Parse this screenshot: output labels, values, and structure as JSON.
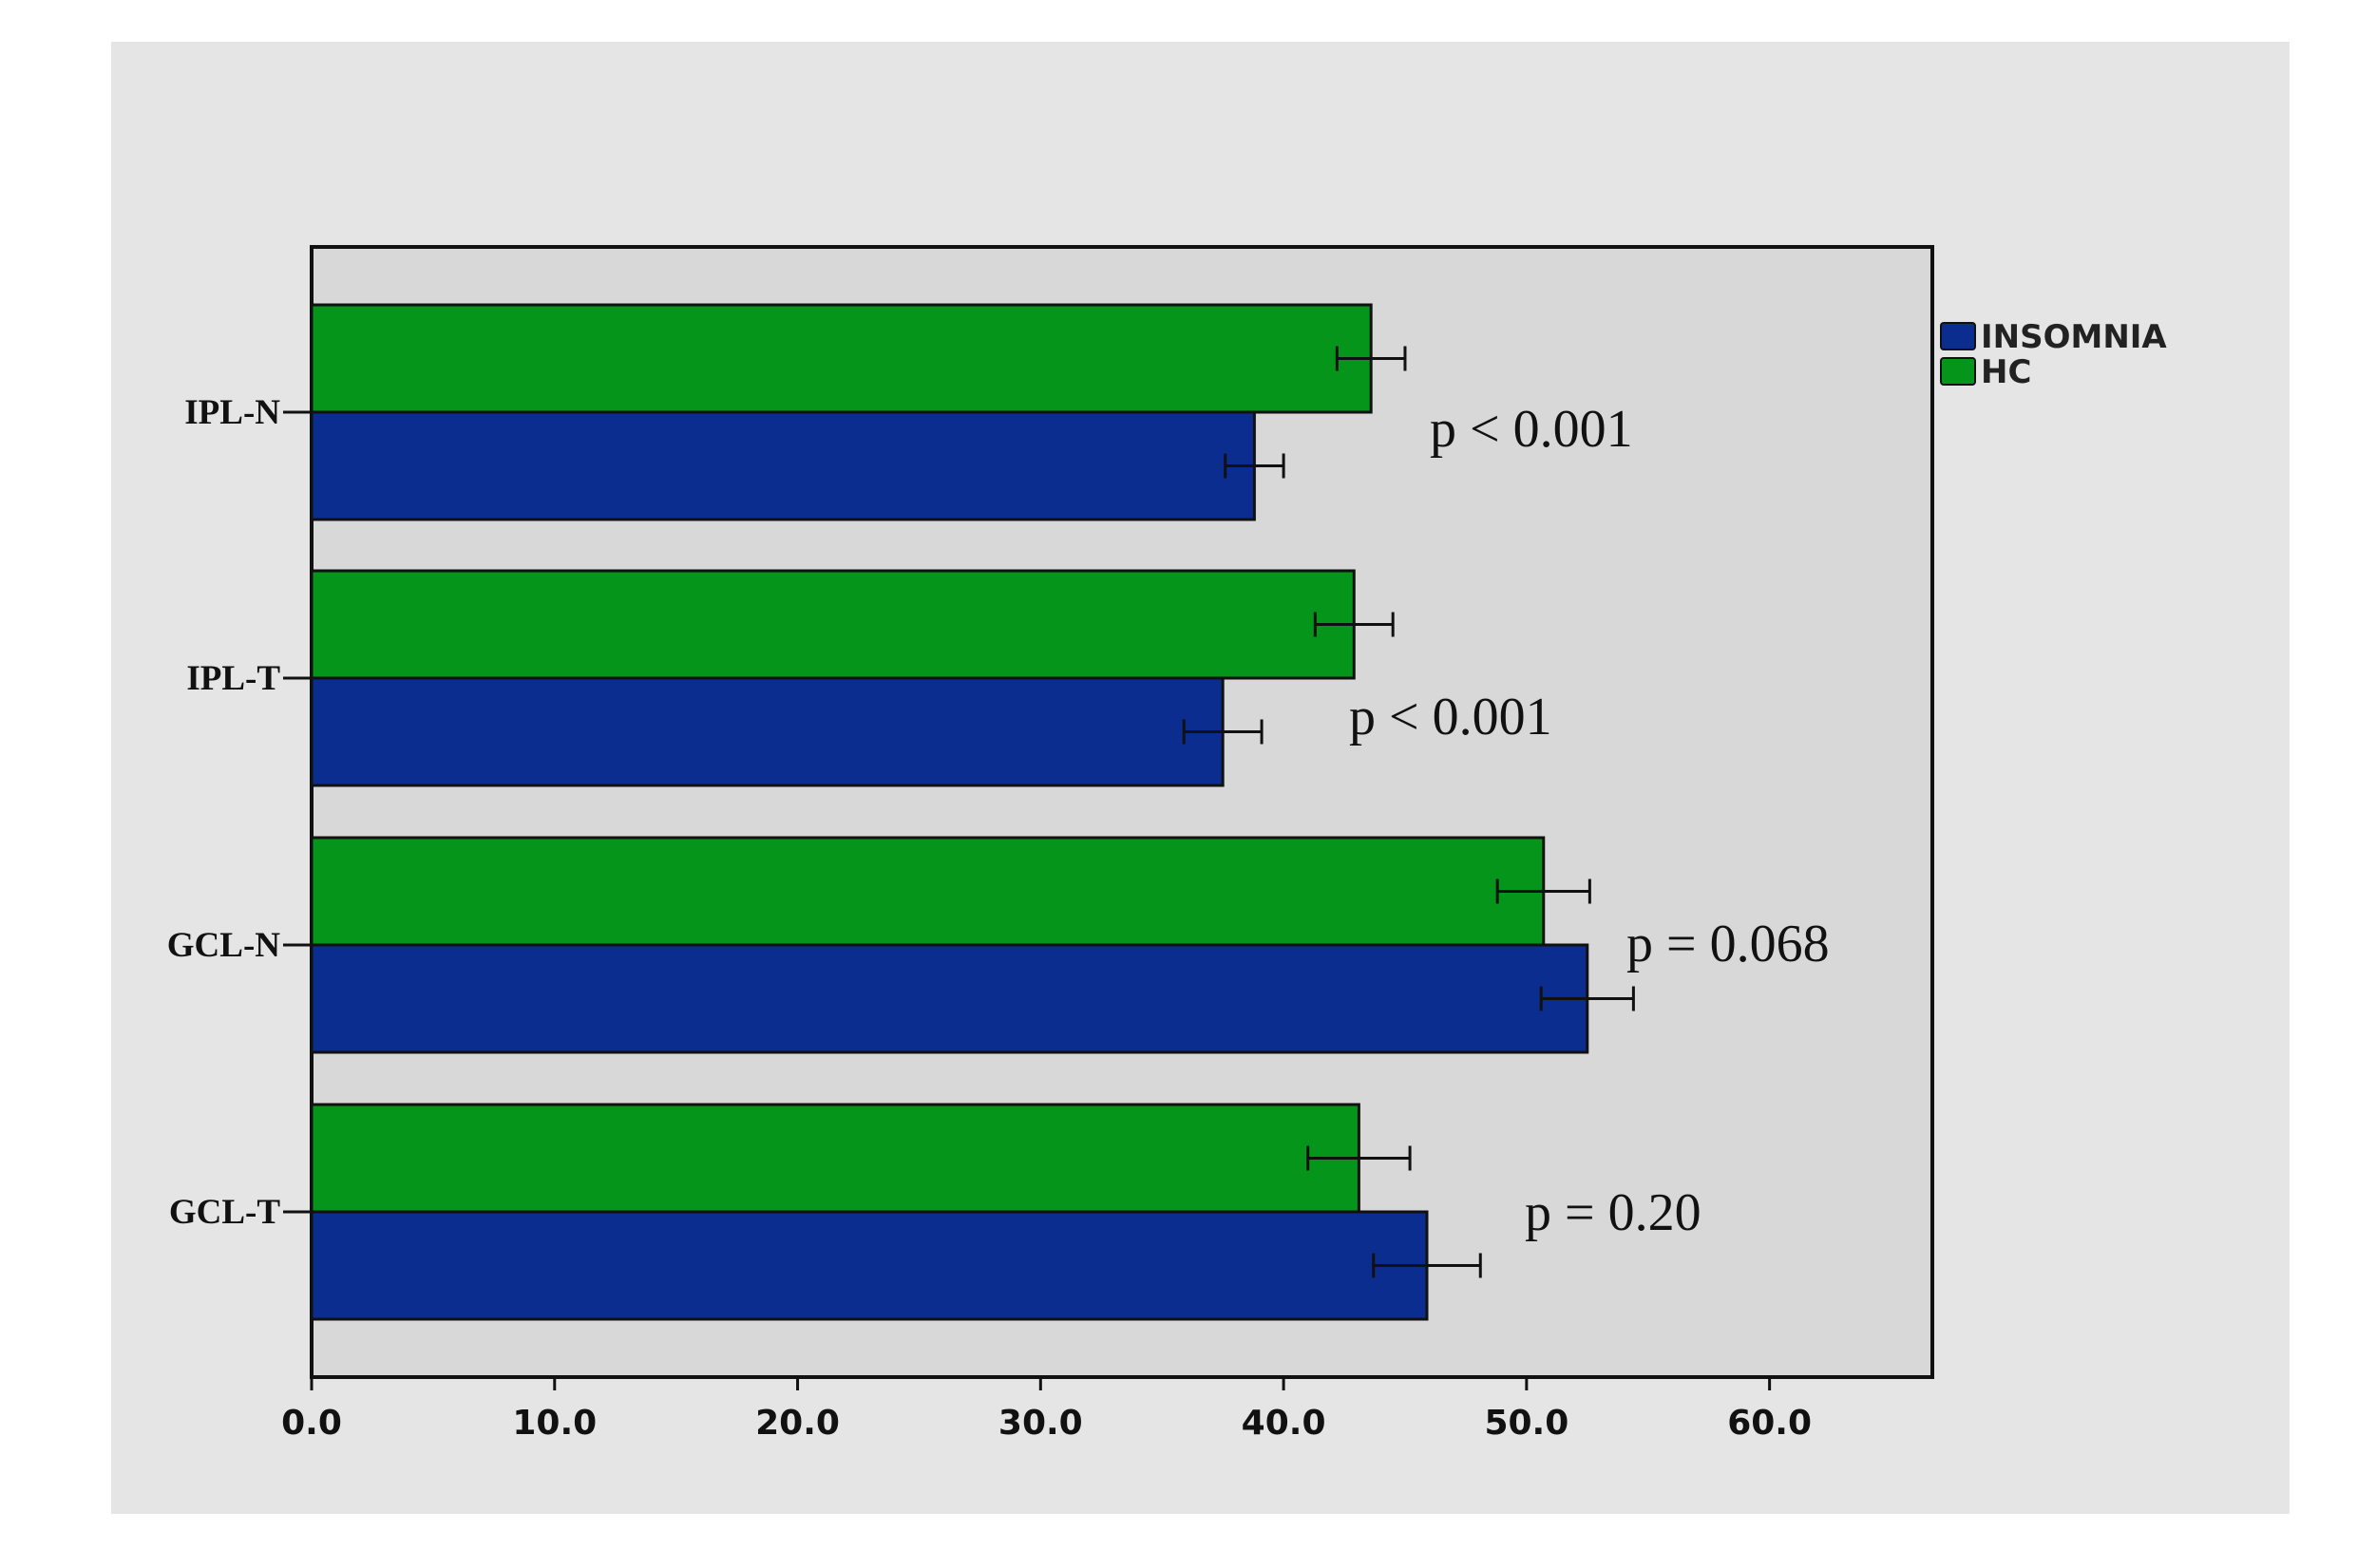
{
  "chart_data": {
    "type": "bar",
    "orientation": "horizontal",
    "categories": [
      "IPL-N",
      "IPL-T",
      "GCL-N",
      "GCL-T"
    ],
    "series": [
      {
        "name": "INSOMNIA",
        "color": "#0b2d8f",
        "values": [
          38.8,
          37.5,
          52.5,
          45.9
        ],
        "errors": [
          1.2,
          1.6,
          1.9,
          2.2
        ]
      },
      {
        "name": "HC",
        "color": "#04951a",
        "values": [
          43.6,
          42.9,
          50.7,
          43.1
        ],
        "errors": [
          1.4,
          1.6,
          1.9,
          2.1
        ]
      }
    ],
    "xlim": [
      0,
      66.7
    ],
    "xticks": [
      "0.0",
      "10.0",
      "20.0",
      "30.0",
      "40.0",
      "50.0",
      "60.0"
    ],
    "xlabel": "",
    "ylabel": "",
    "title": "",
    "grid": false,
    "legend_position": "right-top",
    "annotations": [
      "p < 0.001",
      "p < 0.001",
      "p = 0.068",
      "p = 0.20"
    ]
  }
}
